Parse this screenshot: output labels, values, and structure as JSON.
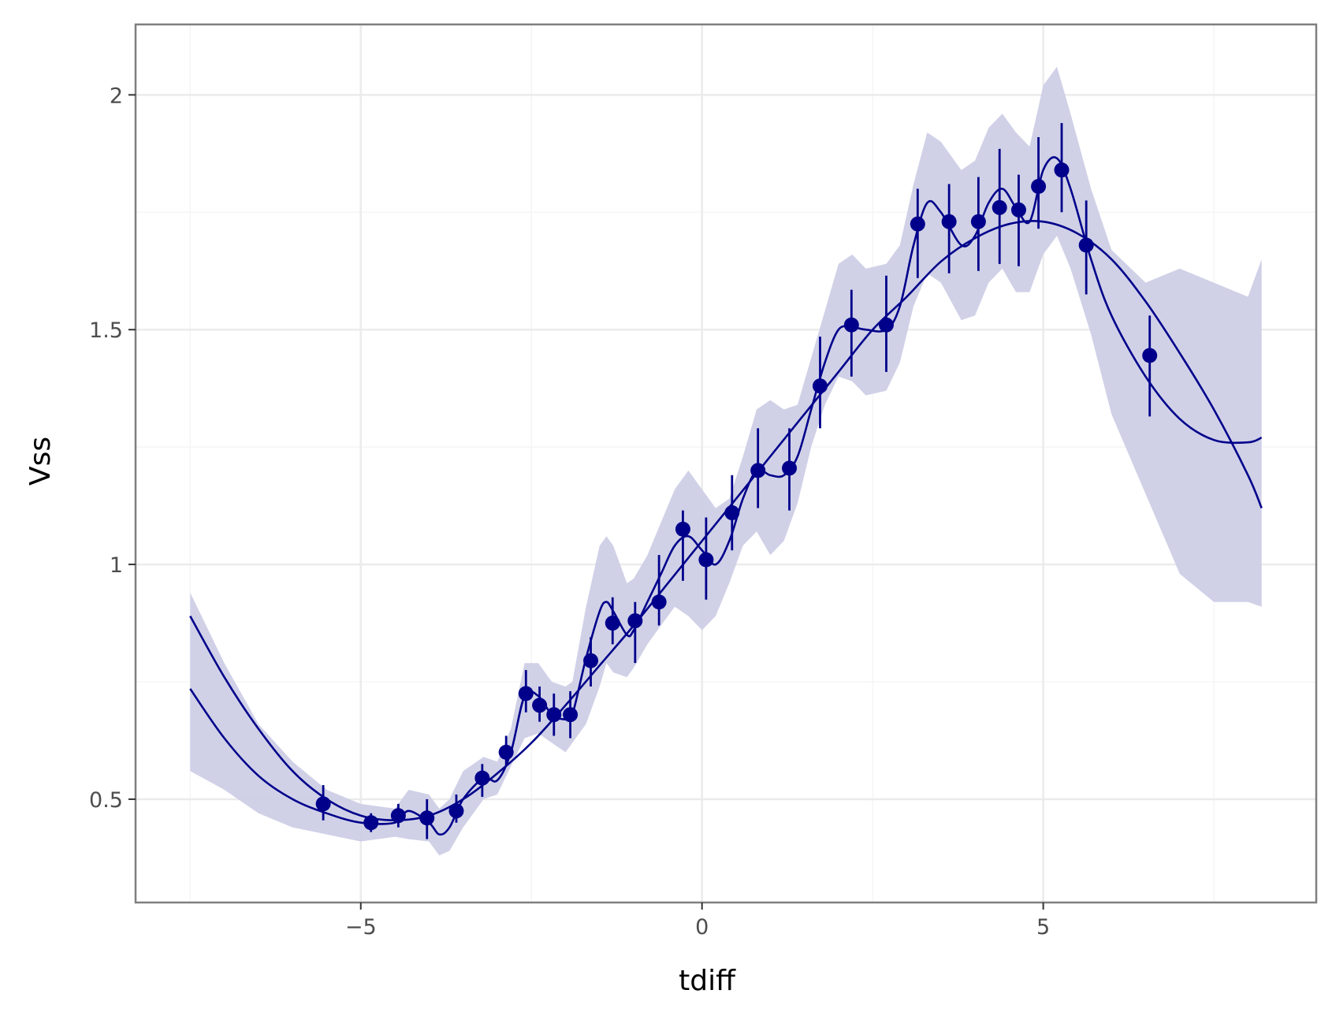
{
  "chart_data": {
    "type": "scatter",
    "xlabel": "tdiff",
    "ylabel": "Vss",
    "xlim": [
      -8.3,
      9.0
    ],
    "ylim": [
      0.28,
      2.15
    ],
    "x_ticks": [
      -5,
      0,
      5
    ],
    "x_tick_labels": [
      "−5",
      "0",
      "5"
    ],
    "x_minor_ticks": [
      -7.5,
      -2.5,
      2.5,
      7.5
    ],
    "y_ticks": [
      0.5,
      1,
      1.5,
      2
    ],
    "y_tick_labels": [
      "0.5",
      "1",
      "1.5",
      "2"
    ],
    "y_minor_ticks": [
      0.75,
      1.25,
      1.75
    ],
    "grid": true,
    "legend": "none",
    "colors": {
      "series": "#00008b",
      "band": "#cdcfe6",
      "grid": "#ebebeb",
      "border": "#7f7f7f"
    },
    "points": {
      "x": [
        -5.55,
        -4.85,
        -4.45,
        -4.03,
        -3.6,
        -3.22,
        -2.87,
        -2.58,
        -2.38,
        -2.17,
        -1.93,
        -1.63,
        -1.31,
        -0.98,
        -0.63,
        -0.28,
        0.06,
        0.44,
        0.82,
        1.28,
        1.73,
        2.19,
        2.7,
        3.16,
        3.62,
        4.05,
        4.36,
        4.64,
        4.93,
        5.27,
        5.63,
        6.56
      ],
      "y": [
        0.49,
        0.45,
        0.465,
        0.46,
        0.475,
        0.545,
        0.6,
        0.725,
        0.7,
        0.68,
        0.68,
        0.795,
        0.875,
        0.88,
        0.92,
        1.075,
        1.01,
        1.11,
        1.2,
        1.205,
        1.38,
        1.51,
        1.51,
        1.725,
        1.73,
        1.73,
        1.76,
        1.755,
        1.805,
        1.84,
        1.68,
        1.445
      ],
      "err_low": [
        0.455,
        0.43,
        0.44,
        0.415,
        0.45,
        0.505,
        0.57,
        0.685,
        0.665,
        0.635,
        0.63,
        0.74,
        0.83,
        0.79,
        0.87,
        0.965,
        0.925,
        1.03,
        1.12,
        1.115,
        1.29,
        1.4,
        1.41,
        1.61,
        1.62,
        1.625,
        1.64,
        1.635,
        1.715,
        1.75,
        1.575,
        1.315
      ],
      "err_high": [
        0.53,
        0.47,
        0.49,
        0.5,
        0.51,
        0.575,
        0.635,
        0.775,
        0.74,
        0.725,
        0.73,
        0.845,
        0.93,
        0.92,
        1.02,
        1.115,
        1.1,
        1.19,
        1.29,
        1.29,
        1.485,
        1.585,
        1.615,
        1.8,
        1.81,
        1.825,
        1.885,
        1.83,
        1.91,
        1.94,
        1.775,
        1.53
      ]
    },
    "smooth_fit": {
      "x": [
        -7.5,
        -7.0,
        -6.5,
        -6.0,
        -5.5,
        -5.0,
        -4.5,
        -4.0,
        -3.5,
        -3.0,
        -2.5,
        -2.0,
        -1.5,
        -1.0,
        -0.5,
        0.0,
        0.5,
        1.0,
        1.5,
        2.0,
        2.5,
        3.0,
        3.5,
        4.0,
        4.5,
        5.0,
        5.5,
        6.0,
        6.5,
        7.0,
        7.5,
        8.0,
        8.2
      ],
      "y": [
        0.89,
        0.76,
        0.65,
        0.56,
        0.5,
        0.465,
        0.455,
        0.465,
        0.5,
        0.555,
        0.62,
        0.7,
        0.785,
        0.87,
        0.96,
        1.05,
        1.14,
        1.23,
        1.32,
        1.41,
        1.5,
        1.57,
        1.645,
        1.695,
        1.725,
        1.73,
        1.705,
        1.65,
        1.56,
        1.45,
        1.33,
        1.19,
        1.12
      ]
    },
    "wiggly_fit": {
      "x": [
        -7.5,
        -7.0,
        -6.5,
        -6.0,
        -5.5,
        -5.0,
        -4.5,
        -4.3,
        -4.0,
        -3.85,
        -3.7,
        -3.5,
        -3.2,
        -3.0,
        -2.8,
        -2.6,
        -2.4,
        -2.2,
        -2.0,
        -1.9,
        -1.7,
        -1.5,
        -1.4,
        -1.3,
        -1.1,
        -1.0,
        -0.8,
        -0.6,
        -0.4,
        -0.2,
        0.0,
        0.2,
        0.4,
        0.6,
        0.8,
        1.0,
        1.2,
        1.4,
        1.6,
        1.8,
        2.0,
        2.2,
        2.4,
        2.7,
        2.9,
        3.1,
        3.3,
        3.5,
        3.8,
        4.0,
        4.2,
        4.4,
        4.6,
        4.8,
        5.0,
        5.2,
        5.4,
        5.7,
        6.0,
        6.5,
        7.0,
        7.5,
        8.0,
        8.2
      ],
      "y": [
        0.735,
        0.63,
        0.55,
        0.5,
        0.47,
        0.45,
        0.45,
        0.475,
        0.45,
        0.425,
        0.44,
        0.5,
        0.545,
        0.54,
        0.6,
        0.72,
        0.72,
        0.68,
        0.67,
        0.68,
        0.8,
        0.9,
        0.92,
        0.9,
        0.85,
        0.86,
        0.92,
        0.98,
        1.04,
        1.06,
        1.03,
        1.0,
        1.05,
        1.14,
        1.2,
        1.19,
        1.19,
        1.23,
        1.33,
        1.43,
        1.5,
        1.505,
        1.5,
        1.5,
        1.55,
        1.68,
        1.77,
        1.75,
        1.68,
        1.7,
        1.77,
        1.8,
        1.76,
        1.73,
        1.84,
        1.865,
        1.8,
        1.65,
        1.53,
        1.4,
        1.31,
        1.265,
        1.26,
        1.27
      ]
    },
    "band": {
      "x": [
        -7.5,
        -7.0,
        -6.5,
        -6.0,
        -5.5,
        -5.0,
        -4.5,
        -4.3,
        -4.0,
        -3.85,
        -3.7,
        -3.5,
        -3.2,
        -3.0,
        -2.8,
        -2.6,
        -2.4,
        -2.2,
        -2.0,
        -1.9,
        -1.7,
        -1.5,
        -1.4,
        -1.3,
        -1.1,
        -1.0,
        -0.8,
        -0.6,
        -0.4,
        -0.2,
        0.0,
        0.2,
        0.4,
        0.6,
        0.8,
        1.0,
        1.2,
        1.4,
        1.6,
        1.8,
        2.0,
        2.2,
        2.4,
        2.7,
        2.9,
        3.1,
        3.3,
        3.5,
        3.8,
        4.0,
        4.2,
        4.4,
        4.6,
        4.8,
        5.0,
        5.2,
        5.4,
        5.7,
        6.0,
        6.5,
        7.0,
        7.5,
        8.0,
        8.2
      ],
      "lower": [
        0.56,
        0.52,
        0.47,
        0.44,
        0.425,
        0.41,
        0.42,
        0.415,
        0.41,
        0.38,
        0.39,
        0.44,
        0.5,
        0.51,
        0.57,
        0.63,
        0.64,
        0.62,
        0.6,
        0.62,
        0.66,
        0.74,
        0.79,
        0.77,
        0.76,
        0.78,
        0.83,
        0.87,
        0.91,
        0.89,
        0.86,
        0.89,
        0.96,
        1.04,
        1.07,
        1.02,
        1.05,
        1.13,
        1.25,
        1.34,
        1.4,
        1.39,
        1.36,
        1.37,
        1.43,
        1.55,
        1.62,
        1.6,
        1.52,
        1.53,
        1.6,
        1.63,
        1.58,
        1.58,
        1.66,
        1.7,
        1.63,
        1.49,
        1.32,
        1.15,
        0.98,
        0.92,
        0.92,
        0.91
      ],
      "upper": [
        0.94,
        0.79,
        0.66,
        0.58,
        0.52,
        0.49,
        0.48,
        0.52,
        0.51,
        0.48,
        0.5,
        0.56,
        0.59,
        0.58,
        0.65,
        0.79,
        0.79,
        0.75,
        0.74,
        0.75,
        0.91,
        1.04,
        1.06,
        1.04,
        0.96,
        0.97,
        1.02,
        1.09,
        1.16,
        1.2,
        1.16,
        1.12,
        1.14,
        1.23,
        1.33,
        1.35,
        1.33,
        1.34,
        1.44,
        1.54,
        1.64,
        1.66,
        1.63,
        1.64,
        1.68,
        1.81,
        1.92,
        1.9,
        1.84,
        1.86,
        1.93,
        1.96,
        1.92,
        1.89,
        2.02,
        2.06,
        1.96,
        1.8,
        1.67,
        1.6,
        1.63,
        1.6,
        1.57,
        1.65
      ]
    }
  }
}
